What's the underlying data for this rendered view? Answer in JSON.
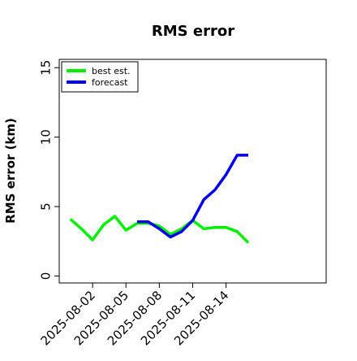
{
  "chart_data": {
    "type": "line",
    "title": "RMS error",
    "xlabel": "",
    "ylabel": "RMS error (km)",
    "ylim": [
      -0.5,
      15.6
    ],
    "yticks": [
      0,
      5,
      10,
      15
    ],
    "xlim": [
      "2025-07-30",
      "2025-08-23"
    ],
    "xticks": [
      "2025-08-02",
      "2025-08-05",
      "2025-08-08",
      "2025-08-11",
      "2025-08-14"
    ],
    "grid": false,
    "legend": "top-left",
    "series": [
      {
        "name": "best est.",
        "color": "#00ee00",
        "points": [
          [
            "2025-07-31T00:00",
            4.1
          ],
          [
            "2025-08-01T00:00",
            3.4
          ],
          [
            "2025-08-02T00:00",
            2.6
          ],
          [
            "2025-08-03T00:00",
            3.7
          ],
          [
            "2025-08-04T00:00",
            4.3
          ],
          [
            "2025-08-05T00:00",
            3.3
          ],
          [
            "2025-08-06T00:00",
            3.8
          ],
          [
            "2025-08-07T00:00",
            3.8
          ],
          [
            "2025-08-08T00:00",
            3.6
          ],
          [
            "2025-08-09T00:00",
            3.0
          ],
          [
            "2025-08-10T00:00",
            3.4
          ],
          [
            "2025-08-11T00:00",
            4.0
          ],
          [
            "2025-08-12T00:00",
            3.4
          ],
          [
            "2025-08-13T00:00",
            3.5
          ],
          [
            "2025-08-14T00:00",
            3.5
          ],
          [
            "2025-08-15T00:00",
            3.2
          ],
          [
            "2025-08-16T00:00",
            2.4
          ]
        ]
      },
      {
        "name": "forecast",
        "color": "#0000ee",
        "points": [
          [
            "2025-08-06T00:00",
            3.9
          ],
          [
            "2025-08-07T00:00",
            3.9
          ],
          [
            "2025-08-08T00:00",
            3.4
          ],
          [
            "2025-08-09T00:00",
            2.8
          ],
          [
            "2025-08-10T00:00",
            3.2
          ],
          [
            "2025-08-11T00:00",
            4.0
          ],
          [
            "2025-08-12T00:00",
            5.5
          ],
          [
            "2025-08-13T00:00",
            6.2
          ],
          [
            "2025-08-14T00:00",
            7.3
          ],
          [
            "2025-08-15T00:00",
            8.7
          ],
          [
            "2025-08-16T00:00",
            8.7
          ]
        ]
      }
    ]
  }
}
